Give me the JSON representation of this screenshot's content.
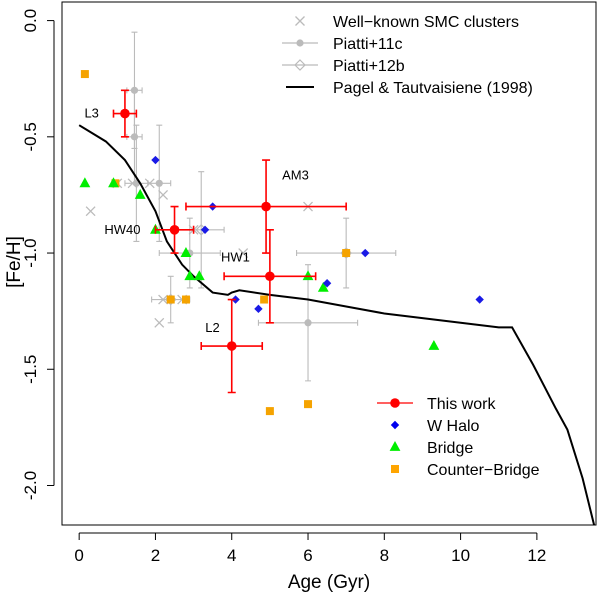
{
  "chart_data": {
    "type": "scatter",
    "title": "",
    "xlabel": "Age (Gyr)",
    "ylabel": "[Fe/H]",
    "xlim": [
      -0.45,
      13.55
    ],
    "ylim": [
      -2.17,
      0.08
    ],
    "xticks": [
      0,
      2,
      4,
      6,
      8,
      10,
      12
    ],
    "xtick_labels": [
      "0",
      "2",
      "4",
      "6",
      "8",
      "10",
      "12"
    ],
    "yticks": [
      0.0,
      -0.5,
      -1.0,
      -1.5,
      -2.0
    ],
    "ytick_labels": [
      "0.0",
      "-0.5",
      "-1.0",
      "-1.5",
      "-2.0"
    ],
    "grid": false,
    "legend_top": [
      {
        "label": "Well−known SMC clusters",
        "marker": "x",
        "color": "#bbbbbb"
      },
      {
        "label": "Piatti+11c",
        "marker": "circle-line",
        "color": "#bbbbbb"
      },
      {
        "label": "Piatti+12b",
        "marker": "diamond-line",
        "color": "#bbbbbb"
      },
      {
        "label": "Pagel & Tautvaisiene (1998)",
        "marker": "line",
        "color": "#000000"
      }
    ],
    "legend_bottom": [
      {
        "label": "This work",
        "marker": "circle-line",
        "color": "#ff0000"
      },
      {
        "label": "W Halo",
        "marker": "diamond",
        "color": "#0000ee"
      },
      {
        "label": "Bridge",
        "marker": "triangle",
        "color": "#00ee00"
      },
      {
        "label": "Counter−Bridge",
        "marker": "square",
        "color": "#ffa500"
      }
    ],
    "colors": {
      "this_work": "#ff0000",
      "w_halo": "#1a1ae6",
      "bridge": "#00ee00",
      "counter_bridge": "#f5a300",
      "literature": "#bbbbbb",
      "model": "#000000"
    },
    "series": [
      {
        "name": "Pagel & Tautvaisiene (1998)",
        "type": "line",
        "x": [
          0,
          0.7,
          1.2,
          1.6,
          2.0,
          2.3,
          2.7,
          3.0,
          3.5,
          3.9,
          4.0,
          4.2,
          5.0,
          6.0,
          7.0,
          8.0,
          9.0,
          10.0,
          11.0,
          11.35,
          11.9,
          12.5,
          12.8,
          13.2,
          13.5
        ],
        "y": [
          -0.45,
          -0.52,
          -0.6,
          -0.7,
          -0.82,
          -0.95,
          -1.05,
          -1.1,
          -1.17,
          -1.18,
          -1.17,
          -1.16,
          -1.18,
          -1.2,
          -1.23,
          -1.26,
          -1.28,
          -1.3,
          -1.32,
          -1.32,
          -1.48,
          -1.67,
          -1.76,
          -1.97,
          -2.17
        ]
      },
      {
        "name": "This work",
        "points": [
          {
            "label": "L3",
            "x": 1.2,
            "y": -0.4,
            "xerr": 0.3,
            "yerr": 0.1
          },
          {
            "label": "HW40",
            "x": 2.5,
            "y": -0.9,
            "xerr": 0.5,
            "yerr": 0.1
          },
          {
            "label": "AM3",
            "x": 4.9,
            "y": -0.8,
            "xerr": 2.1,
            "yerr": 0.2
          },
          {
            "label": "HW1",
            "x": 5.0,
            "y": -1.1,
            "xerr": 1.2,
            "yerr": 0.2
          },
          {
            "label": "L2",
            "x": 4.0,
            "y": -1.4,
            "xerr": 0.8,
            "yerr": 0.2
          }
        ]
      },
      {
        "name": "W Halo",
        "points": [
          {
            "x": 2.0,
            "y": -0.6
          },
          {
            "x": 3.5,
            "y": -0.8
          },
          {
            "x": 3.3,
            "y": -0.9
          },
          {
            "x": 7.5,
            "y": -1.0
          },
          {
            "x": 6.5,
            "y": -1.13
          },
          {
            "x": 4.1,
            "y": -1.2
          },
          {
            "x": 4.7,
            "y": -1.24
          },
          {
            "x": 10.5,
            "y": -1.2
          }
        ]
      },
      {
        "name": "Bridge",
        "points": [
          {
            "x": 0.15,
            "y": -0.7
          },
          {
            "x": 0.9,
            "y": -0.7
          },
          {
            "x": 1.6,
            "y": -0.75
          },
          {
            "x": 2.0,
            "y": -0.9
          },
          {
            "x": 2.8,
            "y": -1.0
          },
          {
            "x": 2.9,
            "y": -1.1
          },
          {
            "x": 3.15,
            "y": -1.1
          },
          {
            "x": 6.0,
            "y": -1.1
          },
          {
            "x": 6.4,
            "y": -1.15
          },
          {
            "x": 9.3,
            "y": -1.4
          }
        ]
      },
      {
        "name": "Counter-Bridge",
        "points": [
          {
            "x": 0.15,
            "y": -0.23
          },
          {
            "x": 0.95,
            "y": -0.7
          },
          {
            "x": 2.4,
            "y": -1.2
          },
          {
            "x": 2.8,
            "y": -1.2
          },
          {
            "x": 4.85,
            "y": -1.2
          },
          {
            "x": 5.0,
            "y": -1.68
          },
          {
            "x": 6.0,
            "y": -1.65
          },
          {
            "x": 7.0,
            "y": -1.0
          }
        ]
      },
      {
        "name": "Well-known SMC clusters",
        "points": [
          {
            "x": 0.3,
            "y": -0.82
          },
          {
            "x": 1.0,
            "y": -0.7
          },
          {
            "x": 1.4,
            "y": -0.7
          },
          {
            "x": 1.85,
            "y": -0.7
          },
          {
            "x": 2.2,
            "y": -0.75
          },
          {
            "x": 3.0,
            "y": -0.9
          },
          {
            "x": 4.3,
            "y": -1.0
          },
          {
            "x": 6.0,
            "y": -0.8
          },
          {
            "x": 2.1,
            "y": -1.3
          },
          {
            "x": 2.2,
            "y": -1.2
          },
          {
            "x": 2.7,
            "y": -1.2
          }
        ]
      },
      {
        "name": "Piatti+11c",
        "points": [
          {
            "x": 1.45,
            "y": -0.3,
            "xerr": 0.2,
            "yerr": 0.25
          },
          {
            "x": 1.45,
            "y": -0.5,
            "xerr": 0.2,
            "yerr": 0.2
          },
          {
            "x": 1.5,
            "y": -0.7,
            "xerr": 0.3,
            "yerr": 0.25
          },
          {
            "x": 2.1,
            "y": -0.7,
            "xerr": 0.3,
            "yerr": 0.25
          },
          {
            "x": 6.0,
            "y": -1.3,
            "xerr": 1.3,
            "yerr": 0.25
          },
          {
            "x": 2.9,
            "y": -1.0,
            "xerr": 0.8,
            "yerr": 0.15
          }
        ]
      },
      {
        "name": "Piatti+12b",
        "points": [
          {
            "x": 7.0,
            "y": -1.0,
            "xerr": 1.3,
            "yerr": 0.15
          },
          {
            "x": 3.2,
            "y": -0.9,
            "xerr": 0.6,
            "yerr": 0.25
          },
          {
            "x": 2.4,
            "y": -1.2,
            "xerr": 0.5,
            "yerr": 0.1
          }
        ]
      }
    ]
  }
}
